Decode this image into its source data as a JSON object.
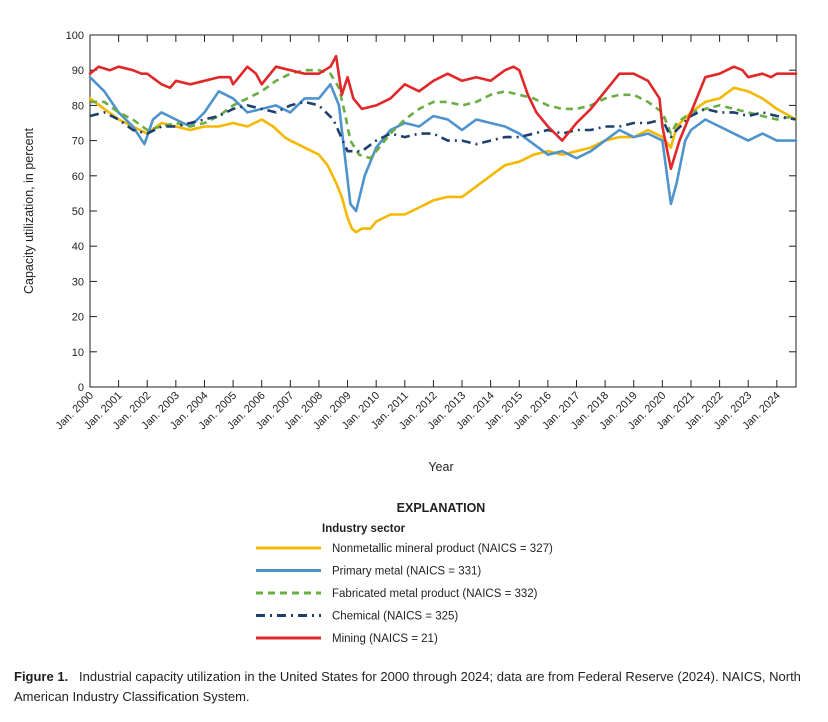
{
  "chart_data": {
    "type": "line",
    "title": "",
    "xlabel": "Year",
    "ylabel": "Capacity utilization, in percent",
    "ylim": [
      0,
      100
    ],
    "yticks": [
      0,
      10,
      20,
      30,
      40,
      50,
      60,
      70,
      80,
      90,
      100
    ],
    "xlim": [
      2000,
      2024.67
    ],
    "xtick_labels": [
      "Jan. 2000",
      "Jan. 2001",
      "Jan. 2002",
      "Jan. 2003",
      "Jan. 2004",
      "Jan. 2005",
      "Jan. 2006",
      "Jan. 2007",
      "Jan. 2008",
      "Jan. 2009",
      "Jan. 2010",
      "Jan. 2011",
      "Jan. 2012",
      "Jan. 2013",
      "Jan. 2014",
      "Jan. 2015",
      "Jan. 2016",
      "Jan. 2017",
      "Jan. 2018",
      "Jan. 2019",
      "Jan. 2020",
      "Jan. 2021",
      "Jan. 2022",
      "Jan. 2023",
      "Jan. 2024"
    ],
    "legend_position": "bottom-center",
    "series": [
      {
        "name": "Nonmetallic mineral product (NAICS = 327)",
        "color": "#f5b800",
        "dash": "solid",
        "x": [
          2000,
          2000.5,
          2001,
          2001.5,
          2002,
          2002.5,
          2003,
          2003.5,
          2004,
          2004.5,
          2005,
          2005.5,
          2006,
          2006.4,
          2006.8,
          2007,
          2007.5,
          2008,
          2008.3,
          2008.6,
          2008.8,
          2009,
          2009.15,
          2009.3,
          2009.5,
          2009.8,
          2010,
          2010.5,
          2011,
          2011.5,
          2012,
          2012.5,
          2013,
          2013.5,
          2014,
          2014.5,
          2015,
          2015.5,
          2016,
          2016.5,
          2017,
          2017.5,
          2018,
          2018.5,
          2019,
          2019.5,
          2020,
          2020.3,
          2020.5,
          2021,
          2021.5,
          2022,
          2022.5,
          2023,
          2023.5,
          2024,
          2024.67
        ],
        "y": [
          82,
          79,
          76,
          74,
          72,
          75,
          74,
          73,
          74,
          74,
          75,
          74,
          76,
          74,
          71,
          70,
          68,
          66,
          63,
          58,
          54,
          48,
          45,
          44,
          45,
          45,
          47,
          49,
          49,
          51,
          53,
          54,
          54,
          57,
          60,
          63,
          64,
          66,
          67,
          66,
          67,
          68,
          70,
          71,
          71,
          73,
          71,
          68,
          74,
          78,
          81,
          82,
          85,
          84,
          82,
          79,
          76
        ]
      },
      {
        "name": "Primary metal (NAICS = 331)",
        "color": "#4f93cd",
        "dash": "solid",
        "x": [
          2000,
          2000.5,
          2001,
          2001.5,
          2001.9,
          2002.2,
          2002.5,
          2003,
          2003.5,
          2004,
          2004.5,
          2005,
          2005.5,
          2006,
          2006.5,
          2007,
          2007.5,
          2008,
          2008.4,
          2008.7,
          2008.9,
          2009.1,
          2009.3,
          2009.6,
          2010,
          2010.5,
          2011,
          2011.5,
          2012,
          2012.5,
          2013,
          2013.5,
          2014,
          2014.5,
          2015,
          2015.5,
          2016,
          2016.5,
          2017,
          2017.5,
          2018,
          2018.5,
          2019,
          2019.5,
          2020,
          2020.3,
          2020.5,
          2020.8,
          2021,
          2021.5,
          2022,
          2022.5,
          2023,
          2023.5,
          2024,
          2024.67
        ],
        "y": [
          88,
          84,
          78,
          74,
          69,
          76,
          78,
          76,
          74,
          78,
          84,
          82,
          78,
          79,
          80,
          78,
          82,
          82,
          86,
          80,
          66,
          52,
          50,
          60,
          68,
          73,
          75,
          74,
          77,
          76,
          73,
          76,
          75,
          74,
          72,
          69,
          66,
          67,
          65,
          67,
          70,
          73,
          71,
          72,
          70,
          52,
          58,
          70,
          73,
          76,
          74,
          72,
          70,
          72,
          70,
          70
        ]
      },
      {
        "name": "Fabricated metal product (NAICS = 332)",
        "color": "#6aad45",
        "dash": "dashed",
        "x": [
          2000,
          2000.5,
          2001,
          2001.5,
          2002,
          2002.5,
          2003,
          2003.5,
          2004,
          2004.5,
          2005,
          2005.5,
          2006,
          2006.5,
          2007,
          2007.5,
          2008,
          2008.4,
          2008.7,
          2008.9,
          2009.1,
          2009.4,
          2009.8,
          2010,
          2010.5,
          2011,
          2011.5,
          2012,
          2012.5,
          2013,
          2013.5,
          2014,
          2014.5,
          2015,
          2015.5,
          2016,
          2016.5,
          2017,
          2017.5,
          2018,
          2018.5,
          2019,
          2019.5,
          2020,
          2020.3,
          2020.5,
          2021,
          2021.5,
          2022,
          2022.5,
          2023,
          2023.5,
          2024,
          2024.67
        ],
        "y": [
          81,
          81,
          78,
          76,
          73,
          74,
          75,
          74,
          75,
          77,
          80,
          82,
          84,
          87,
          89,
          90,
          90,
          89,
          85,
          78,
          70,
          66,
          65,
          67,
          72,
          76,
          79,
          81,
          81,
          80,
          81,
          83,
          84,
          83,
          82,
          80,
          79,
          79,
          80,
          82,
          83,
          83,
          81,
          78,
          72,
          75,
          78,
          79,
          80,
          79,
          78,
          77,
          76,
          77
        ]
      },
      {
        "name": "Chemical (NAICS = 325)",
        "color": "#1e3f6e",
        "dash": "dashdot",
        "x": [
          2000,
          2000.5,
          2001,
          2001.5,
          2002,
          2002.5,
          2003,
          2003.5,
          2004,
          2004.5,
          2005,
          2005.5,
          2006,
          2006.5,
          2007,
          2007.5,
          2008,
          2008.5,
          2009,
          2009.5,
          2010,
          2010.5,
          2011,
          2011.5,
          2012,
          2012.5,
          2013,
          2013.5,
          2014,
          2014.5,
          2015,
          2015.5,
          2016,
          2016.5,
          2017,
          2017.5,
          2018,
          2018.5,
          2019,
          2019.5,
          2020,
          2020.3,
          2020.5,
          2021,
          2021.5,
          2022,
          2022.5,
          2023,
          2023.5,
          2024,
          2024.67
        ],
        "y": [
          77,
          78,
          76,
          73,
          72,
          74,
          74,
          75,
          76,
          77,
          79,
          80,
          79,
          78,
          80,
          81,
          80,
          76,
          67,
          67,
          70,
          72,
          71,
          72,
          72,
          70,
          70,
          69,
          70,
          71,
          71,
          72,
          73,
          72,
          73,
          73,
          74,
          74,
          75,
          75,
          76,
          71,
          73,
          77,
          79,
          78,
          78,
          77,
          78,
          77,
          76
        ]
      },
      {
        "name": "Mining (NAICS = 21)",
        "color": "#e0282a",
        "dash": "solid",
        "x": [
          2000,
          2000.3,
          2000.7,
          2001,
          2001.5,
          2001.8,
          2002,
          2002.5,
          2002.8,
          2003,
          2003.5,
          2004,
          2004.5,
          2004.9,
          2005,
          2005.5,
          2005.8,
          2006,
          2006.5,
          2007,
          2007.5,
          2008,
          2008.4,
          2008.6,
          2008.8,
          2009,
          2009.2,
          2009.5,
          2010,
          2010.5,
          2011,
          2011.5,
          2012,
          2012.5,
          2013,
          2013.5,
          2014,
          2014.5,
          2014.8,
          2015,
          2015.3,
          2015.6,
          2016,
          2016.5,
          2017,
          2017.5,
          2018,
          2018.5,
          2019,
          2019.5,
          2019.9,
          2020,
          2020.3,
          2020.6,
          2021,
          2021.5,
          2022,
          2022.5,
          2022.8,
          2023,
          2023.5,
          2023.8,
          2024,
          2024.67
        ],
        "y": [
          89,
          91,
          90,
          91,
          90,
          89,
          89,
          86,
          85,
          87,
          86,
          87,
          88,
          88,
          86,
          91,
          89,
          86,
          91,
          90,
          89,
          89,
          91,
          94,
          83,
          88,
          82,
          79,
          80,
          82,
          86,
          84,
          87,
          89,
          87,
          88,
          87,
          90,
          91,
          90,
          83,
          78,
          74,
          70,
          75,
          79,
          84,
          89,
          89,
          87,
          82,
          74,
          62,
          70,
          78,
          88,
          89,
          91,
          90,
          88,
          89,
          88,
          89,
          89
        ]
      }
    ]
  },
  "legend": {
    "explanation_title": "EXPLANATION",
    "subtitle": "Industry sector"
  },
  "caption": {
    "label": "Figure 1.",
    "text": "Industrial capacity utilization in the United States for 2000 through 2024; data are from Federal Reserve (2024). NAICS, North American Industry Classification System."
  }
}
